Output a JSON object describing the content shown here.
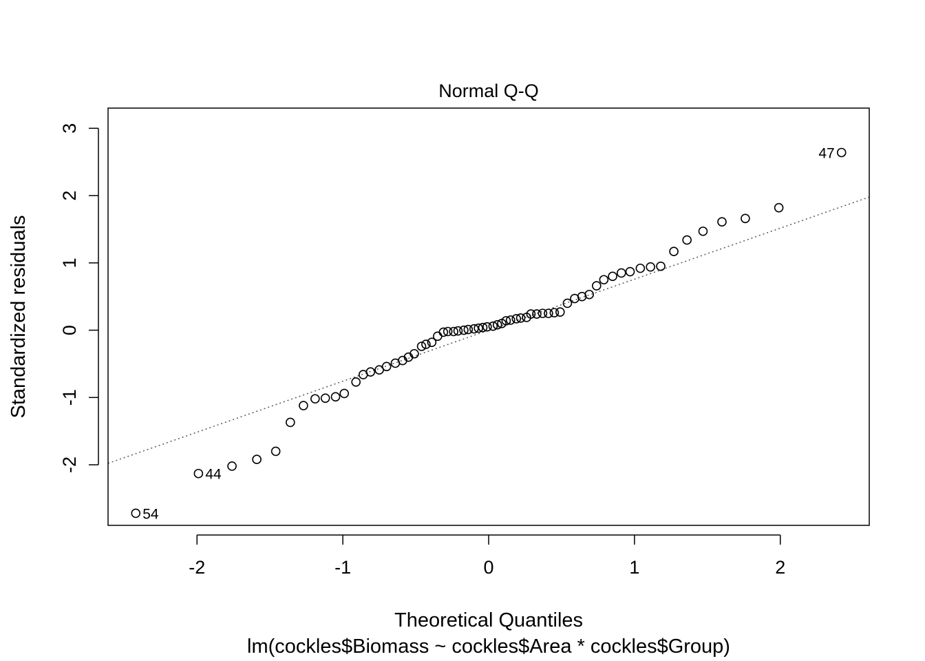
{
  "chart_data": {
    "type": "scatter",
    "title": "Normal Q-Q",
    "xlabel": "Theoretical Quantiles",
    "ylabel": "Standardized residuals",
    "subtitle": "lm(cockles$Biomass ~ cockles$Area * cockles$Group)",
    "xlim": [
      -2.61,
      2.61
    ],
    "ylim": [
      -2.9,
      3.3
    ],
    "xticks": [
      -2,
      -1,
      0,
      1,
      2
    ],
    "xtick_labels": [
      "-2",
      "-1",
      "0",
      "1",
      "2"
    ],
    "yticks": [
      -2,
      -1,
      0,
      1,
      2,
      3
    ],
    "ytick_labels": [
      "-2",
      "-1",
      "0",
      "1",
      "2",
      "3"
    ],
    "grid": false,
    "reference_line": {
      "slope": 0.758,
      "intercept": 0.0,
      "style": "dotted",
      "color": "#555555"
    },
    "series": [
      {
        "x": [
          -2.42,
          -1.99,
          -1.76,
          -1.59,
          -1.46,
          -1.36,
          -1.27,
          -1.19,
          -1.12,
          -1.05,
          -0.99,
          -0.91,
          -0.86,
          -0.81,
          -0.75,
          -0.7,
          -0.64,
          -0.59,
          -0.55,
          -0.51,
          -0.46,
          -0.43,
          -0.39,
          -0.35,
          -0.31,
          -0.28,
          -0.24,
          -0.21,
          -0.17,
          -0.14,
          -0.1,
          -0.07,
          -0.04,
          -0.01,
          0.03,
          0.06,
          0.09,
          0.12,
          0.15,
          0.19,
          0.22,
          0.26,
          0.29,
          0.33,
          0.37,
          0.41,
          0.45,
          0.49,
          0.54,
          0.59,
          0.64,
          0.69,
          0.74,
          0.79,
          0.85,
          0.91,
          0.97,
          1.04,
          1.11,
          1.18,
          1.27,
          1.36,
          1.47,
          1.6,
          1.76,
          1.99,
          2.42
        ],
        "y": [
          -2.72,
          -2.13,
          -2.02,
          -1.92,
          -1.8,
          -1.37,
          -1.12,
          -1.02,
          -1.01,
          -0.99,
          -0.94,
          -0.77,
          -0.66,
          -0.62,
          -0.59,
          -0.54,
          -0.49,
          -0.45,
          -0.4,
          -0.35,
          -0.24,
          -0.21,
          -0.18,
          -0.09,
          -0.03,
          -0.02,
          -0.02,
          -0.01,
          0.0,
          0.01,
          0.02,
          0.03,
          0.04,
          0.05,
          0.06,
          0.08,
          0.1,
          0.14,
          0.15,
          0.17,
          0.18,
          0.19,
          0.24,
          0.24,
          0.25,
          0.25,
          0.26,
          0.27,
          0.4,
          0.47,
          0.5,
          0.53,
          0.66,
          0.75,
          0.8,
          0.85,
          0.87,
          0.92,
          0.94,
          0.95,
          1.17,
          1.34,
          1.47,
          1.61,
          1.66,
          1.82,
          2.64
        ]
      }
    ],
    "point_labels": [
      {
        "text": "54",
        "index": 0,
        "side": "right"
      },
      {
        "text": "44",
        "index": 1,
        "side": "right"
      },
      {
        "text": "47",
        "index": 66,
        "side": "left"
      }
    ]
  }
}
